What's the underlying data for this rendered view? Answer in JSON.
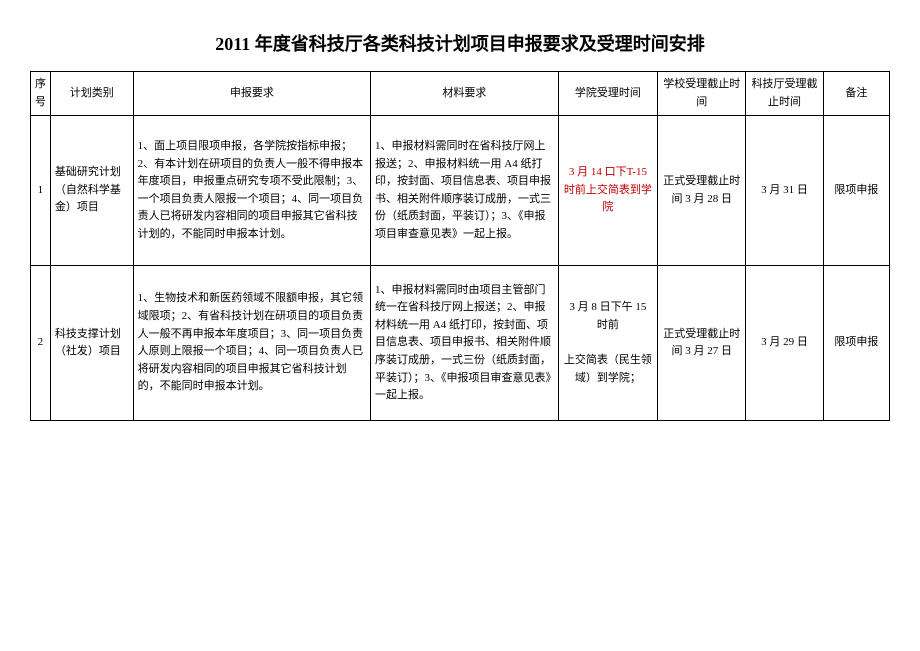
{
  "title": "2011 年度省科技厅各类科技计划项目申报要求及受理时间安排",
  "headers": {
    "idx": "序号",
    "category": "计划类别",
    "appReq": "申报要求",
    "matReq": "材料要求",
    "college": "学院受理时间",
    "school": "学校受理截止时间",
    "dept": "科技厅受理截止时间",
    "note": "备注"
  },
  "rows": [
    {
      "idx": "1",
      "category": "基础研究计划（自然科学基金）项目",
      "appReq": "1、面上项目限项申报，各学院按指标申报；2、有本计划在研项目的负责人一般不得申报本年度项目，申报重点研究专项不受此限制；3、一个项目负责人限报一个项目；4、同一项目负责人已将研发内容相同的项目申报其它省科技计划的，不能同时申报本计划。",
      "matReq": "1、申报材料需同时在省科技厅网上报送；2、申报材料统一用 A4 纸打印，按封面、项目信息表、项目申报书、相关附件顺序装订成册，一式三份（纸质封面，平装订）；3、《申报项目审查意见表》一起上报。",
      "college_red": "3 月 14 口下T-15 时前上交简表到学院",
      "college_black": "",
      "school": "正式受理截止时间 3 月 28 日",
      "dept": "3 月 31 日",
      "note": "限项申报"
    },
    {
      "idx": "2",
      "category": "科技支撑计划（社发）项目",
      "appReq": "1、生物技术和新医药领域不限额申报，其它领域限项；2、有省科技计划在研项目的项目负责人一般不再申报本年度项目；3、同一项目负责人原则上限报一个项目；4、同一项目负责人已将研发内容相同的项目申报其它省科技计划的，不能同时申报本计划。",
      "matReq": "1、申报材料需同时由项目主管部门统一在省科技厅网上报送；2、申报材料统一用 A4 纸打印，按封面、项目信息表、项目申报书、相关附件顺序装订成册，一式三份（纸质封面，平装订）；3、《申报项目审查意见表》一起上报。",
      "college_red": "",
      "college_black": "3 月 8 日下午 15 时前\n\n上交简表（民生领域）到学院；",
      "school": "正式受理截止时间 3 月 27 日",
      "dept": "3 月 29 日",
      "note": "限项申报"
    }
  ]
}
